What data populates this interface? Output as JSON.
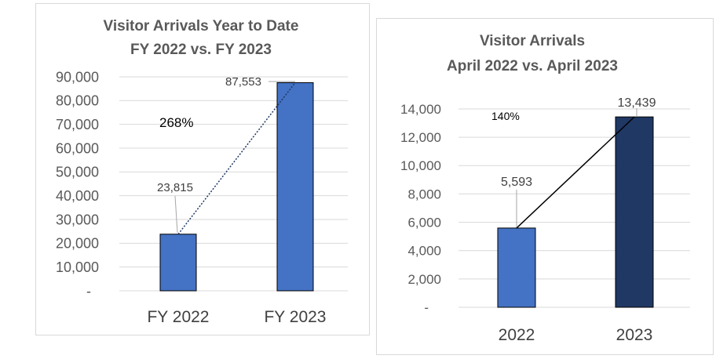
{
  "chart_data": [
    {
      "type": "bar",
      "title": "Visitor Arrivals Year to Date",
      "subtitle": "FY 2022 vs. FY 2023",
      "categories": [
        "FY 2022",
        "FY 2023"
      ],
      "values": [
        23815,
        87553
      ],
      "value_labels": [
        "23,815",
        "87,553"
      ],
      "colors": [
        "#4472c4",
        "#4472c4"
      ],
      "ylim": [
        0,
        90000
      ],
      "yticks": [
        0,
        10000,
        20000,
        30000,
        40000,
        50000,
        60000,
        70000,
        80000,
        90000
      ],
      "ytick_labels": [
        "-",
        "10,000",
        "20,000",
        "30,000",
        "40,000",
        "50,000",
        "60,000",
        "70,000",
        "80,000",
        "90,000"
      ],
      "grid": true,
      "annotation": "268%",
      "connector_style": "dotted",
      "connector_color": "#1f3864"
    },
    {
      "type": "bar",
      "title": "Visitor Arrivals",
      "subtitle": "April 2022 vs. April 2023",
      "categories": [
        "2022",
        "2023"
      ],
      "values": [
        5593,
        13439
      ],
      "value_labels": [
        "5,593",
        "13,439"
      ],
      "colors": [
        "#4472c4",
        "#203864"
      ],
      "ylim": [
        0,
        14000
      ],
      "yticks": [
        0,
        2000,
        4000,
        6000,
        8000,
        10000,
        12000,
        14000
      ],
      "ytick_labels": [
        "-",
        "2,000",
        "4,000",
        "6,000",
        "8,000",
        "10,000",
        "12,000",
        "14,000"
      ],
      "grid": true,
      "annotation": "140%",
      "connector_style": "solid",
      "connector_color": "#000000"
    }
  ]
}
